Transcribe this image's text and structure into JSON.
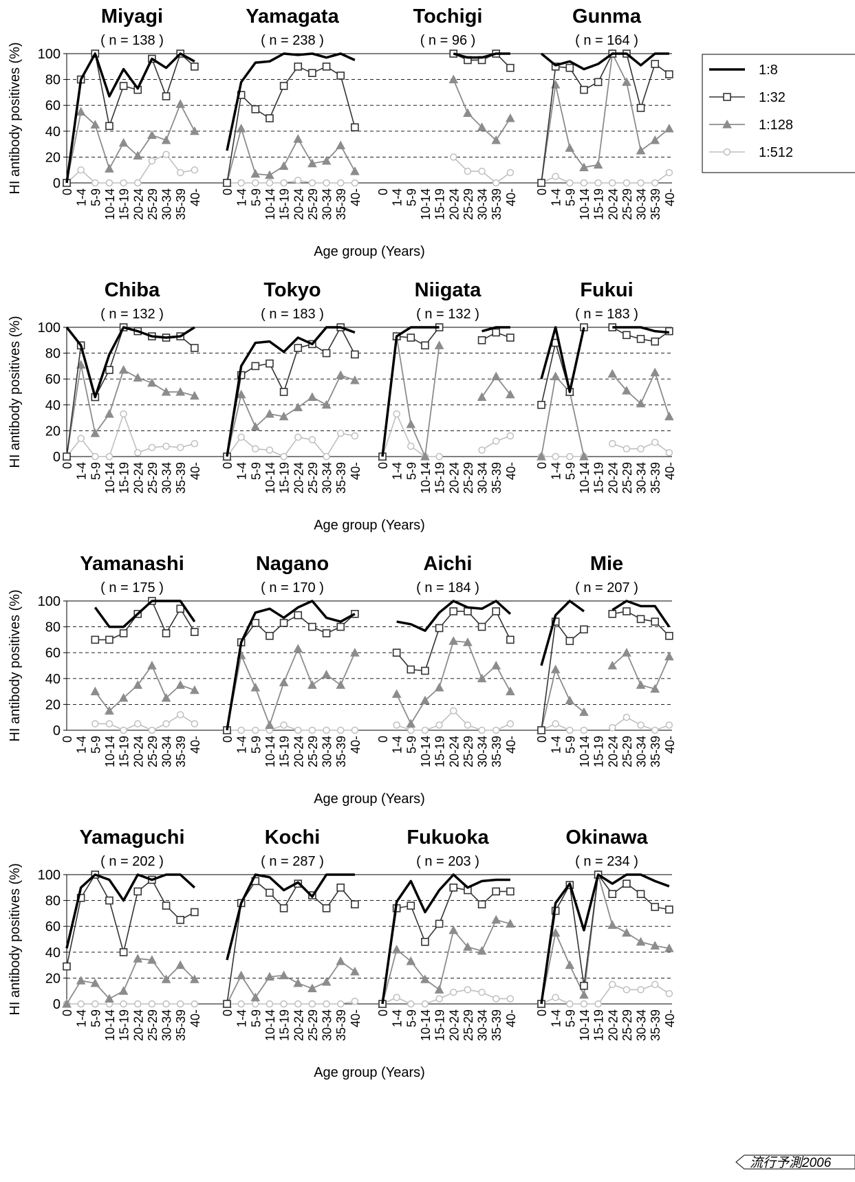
{
  "chart_data": {
    "type": "line",
    "ylabel": "HI antibody positives (%)",
    "xlabel": "Age group (Years)",
    "ylim": [
      0,
      100
    ],
    "yticks": [
      0,
      20,
      40,
      60,
      80,
      100
    ],
    "grid": "dashed horizontal",
    "age_groups": [
      "0",
      "1-4",
      "5-9",
      "10-14",
      "15-19",
      "20-24",
      "25-29",
      "30-34",
      "35-39",
      "40-"
    ],
    "legend": {
      "placement": "right of first row",
      "entries": [
        {
          "label": "1:8",
          "color": "#000000",
          "marker": "none"
        },
        {
          "label": "1:32",
          "color": "#333333",
          "marker": "open-square"
        },
        {
          "label": "1:128",
          "color": "#8c8c8c",
          "marker": "filled-triangle"
        },
        {
          "label": "1:512",
          "color": "#bfbfbf",
          "marker": "open-circle"
        }
      ]
    },
    "watermark": "流行予測2006",
    "panels": [
      {
        "title": "Miyagi",
        "n": "( n = 138 )",
        "series": [
          [
            0,
            80,
            100,
            67,
            88,
            73,
            96,
            89,
            100,
            94
          ],
          [
            0,
            80,
            100,
            44,
            75,
            72,
            96,
            67,
            100,
            90
          ],
          [
            0,
            55,
            45,
            11,
            31,
            21,
            37,
            33,
            61,
            40
          ],
          [
            0,
            10,
            0,
            0,
            0,
            0,
            17,
            22,
            8,
            10
          ]
        ]
      },
      {
        "title": "Yamagata",
        "n": "( n = 238 )",
        "series": [
          [
            25,
            78,
            93,
            94,
            100,
            99,
            100,
            97,
            100,
            95
          ],
          [
            0,
            68,
            57,
            50,
            75,
            90,
            85,
            90,
            83,
            43
          ],
          [
            0,
            42,
            7,
            6,
            13,
            34,
            15,
            17,
            29,
            9
          ],
          [
            0,
            0,
            0,
            0,
            0,
            2,
            0,
            0,
            0,
            0
          ]
        ]
      },
      {
        "title": "Tochigi",
        "n": "( n = 96 )",
        "series": [
          [
            null,
            null,
            null,
            null,
            null,
            100,
            97,
            97,
            100,
            100
          ],
          [
            null,
            null,
            null,
            null,
            null,
            100,
            95,
            95,
            100,
            89
          ],
          [
            null,
            null,
            null,
            null,
            null,
            80,
            54,
            43,
            33,
            50
          ],
          [
            null,
            null,
            null,
            null,
            null,
            20,
            9,
            9,
            0,
            8
          ]
        ]
      },
      {
        "title": "Gunma",
        "n": "( n = 164 )",
        "series": [
          [
            100,
            91,
            94,
            88,
            92,
            100,
            100,
            91,
            100,
            100
          ],
          [
            0,
            90,
            89,
            72,
            78,
            100,
            100,
            58,
            92,
            84
          ],
          [
            0,
            76,
            27,
            12,
            14,
            100,
            78,
            25,
            33,
            42
          ],
          [
            0,
            5,
            0,
            0,
            0,
            0,
            0,
            0,
            0,
            8
          ]
        ]
      },
      {
        "title": "Chiba",
        "n": "( n = 132 )",
        "series": [
          [
            100,
            86,
            46,
            79,
            100,
            97,
            93,
            92,
            93,
            100
          ],
          [
            0,
            86,
            46,
            67,
            100,
            97,
            93,
            92,
            93,
            84
          ],
          [
            0,
            71,
            18,
            33,
            67,
            61,
            57,
            50,
            50,
            47
          ],
          [
            0,
            14,
            0,
            0,
            33,
            3,
            7,
            8,
            7,
            10
          ]
        ]
      },
      {
        "title": "Tokyo",
        "n": "( n = 183 )",
        "series": [
          [
            0,
            70,
            88,
            89,
            81,
            92,
            87,
            100,
            100,
            96
          ],
          [
            0,
            63,
            70,
            72,
            50,
            84,
            87,
            80,
            100,
            79
          ],
          [
            0,
            48,
            23,
            33,
            31,
            38,
            46,
            40,
            63,
            59
          ],
          [
            0,
            15,
            6,
            5,
            0,
            15,
            13,
            0,
            18,
            16
          ]
        ]
      },
      {
        "title": "Niigata",
        "n": "( n = 132 )",
        "series": [
          [
            0,
            93,
            100,
            100,
            100,
            null,
            null,
            97,
            100,
            100
          ],
          [
            0,
            93,
            92,
            86,
            100,
            null,
            null,
            90,
            96,
            92
          ],
          [
            0,
            93,
            25,
            0,
            86,
            null,
            null,
            46,
            62,
            48
          ],
          [
            0,
            33,
            8,
            0,
            0,
            null,
            null,
            5,
            12,
            16
          ]
        ]
      },
      {
        "title": "Fukui",
        "n": "( n = 183 )",
        "series": [
          [
            60,
            100,
            50,
            100,
            null,
            100,
            100,
            100,
            97,
            96
          ],
          [
            40,
            88,
            50,
            100,
            null,
            100,
            94,
            91,
            89,
            97
          ],
          [
            0,
            62,
            50,
            0,
            null,
            64,
            51,
            41,
            65,
            31
          ],
          [
            0,
            0,
            0,
            0,
            null,
            10,
            6,
            6,
            11,
            3
          ]
        ]
      },
      {
        "title": "Yamanashi",
        "n": "( n = 175 )",
        "series": [
          [
            null,
            null,
            95,
            80,
            80,
            90,
            100,
            100,
            100,
            84
          ],
          [
            null,
            null,
            70,
            70,
            75,
            90,
            100,
            75,
            94,
            76
          ],
          [
            null,
            null,
            30,
            15,
            25,
            35,
            50,
            25,
            35,
            31
          ],
          [
            null,
            null,
            5,
            5,
            0,
            5,
            0,
            5,
            12,
            5
          ]
        ]
      },
      {
        "title": "Nagano",
        "n": "( n = 170 )",
        "series": [
          [
            0,
            68,
            91,
            94,
            87,
            95,
            100,
            87,
            84,
            90
          ],
          [
            0,
            68,
            83,
            73,
            83,
            89,
            80,
            75,
            80,
            90
          ],
          [
            0,
            58,
            33,
            4,
            37,
            63,
            35,
            43,
            35,
            60
          ],
          [
            0,
            0,
            0,
            0,
            4,
            0,
            0,
            0,
            0,
            0
          ]
        ]
      },
      {
        "title": "Aichi",
        "n": "( n = 184 )",
        "series": [
          [
            null,
            84,
            82,
            77,
            91,
            100,
            95,
            94,
            100,
            90
          ],
          [
            null,
            60,
            47,
            46,
            79,
            92,
            92,
            80,
            92,
            70
          ],
          [
            null,
            28,
            5,
            23,
            33,
            69,
            68,
            40,
            50,
            30
          ],
          [
            null,
            4,
            0,
            0,
            4,
            15,
            4,
            0,
            0,
            5
          ]
        ]
      },
      {
        "title": "Mie",
        "n": "( n = 207 )",
        "series": [
          [
            50,
            89,
            100,
            92,
            null,
            93,
            100,
            96,
            96,
            80
          ],
          [
            0,
            84,
            69,
            78,
            null,
            90,
            92,
            86,
            84,
            73
          ],
          [
            0,
            47,
            23,
            14,
            null,
            50,
            60,
            35,
            32,
            57
          ],
          [
            0,
            5,
            0,
            0,
            null,
            2,
            10,
            4,
            0,
            4
          ]
        ]
      },
      {
        "title": "Yamaguchi",
        "n": "( n = 202 )",
        "series": [
          [
            43,
            90,
            100,
            96,
            80,
            100,
            96,
            100,
            100,
            90
          ],
          [
            29,
            82,
            100,
            80,
            40,
            87,
            96,
            76,
            65,
            71
          ],
          [
            0,
            18,
            16,
            4,
            10,
            35,
            34,
            19,
            30,
            19
          ],
          [
            0,
            0,
            0,
            0,
            0,
            0,
            0,
            0,
            0,
            0
          ]
        ]
      },
      {
        "title": "Kochi",
        "n": "( n = 287 )",
        "series": [
          [
            34,
            78,
            100,
            98,
            88,
            94,
            83,
            100,
            100,
            100
          ],
          [
            0,
            78,
            95,
            86,
            74,
            93,
            84,
            74,
            90,
            77
          ],
          [
            0,
            22,
            5,
            21,
            22,
            16,
            12,
            17,
            33,
            25
          ],
          [
            0,
            0,
            0,
            0,
            0,
            0,
            0,
            0,
            0,
            2
          ]
        ]
      },
      {
        "title": "Fukuoka",
        "n": "( n = 203 )",
        "series": [
          [
            0,
            79,
            95,
            71,
            88,
            100,
            90,
            95,
            96,
            96
          ],
          [
            0,
            74,
            76,
            48,
            62,
            90,
            88,
            77,
            87,
            87
          ],
          [
            0,
            42,
            33,
            19,
            11,
            57,
            44,
            41,
            65,
            62
          ],
          [
            0,
            5,
            0,
            0,
            4,
            9,
            11,
            9,
            4,
            4
          ]
        ]
      },
      {
        "title": "Okinawa",
        "n": "( n = 234 )",
        "series": [
          [
            0,
            78,
            93,
            57,
            100,
            93,
            100,
            100,
            95,
            91
          ],
          [
            0,
            72,
            92,
            14,
            100,
            85,
            93,
            85,
            75,
            73
          ],
          [
            0,
            55,
            30,
            7,
            100,
            61,
            55,
            48,
            45,
            43
          ],
          [
            0,
            5,
            0,
            0,
            0,
            15,
            11,
            11,
            15,
            8
          ]
        ]
      }
    ]
  }
}
